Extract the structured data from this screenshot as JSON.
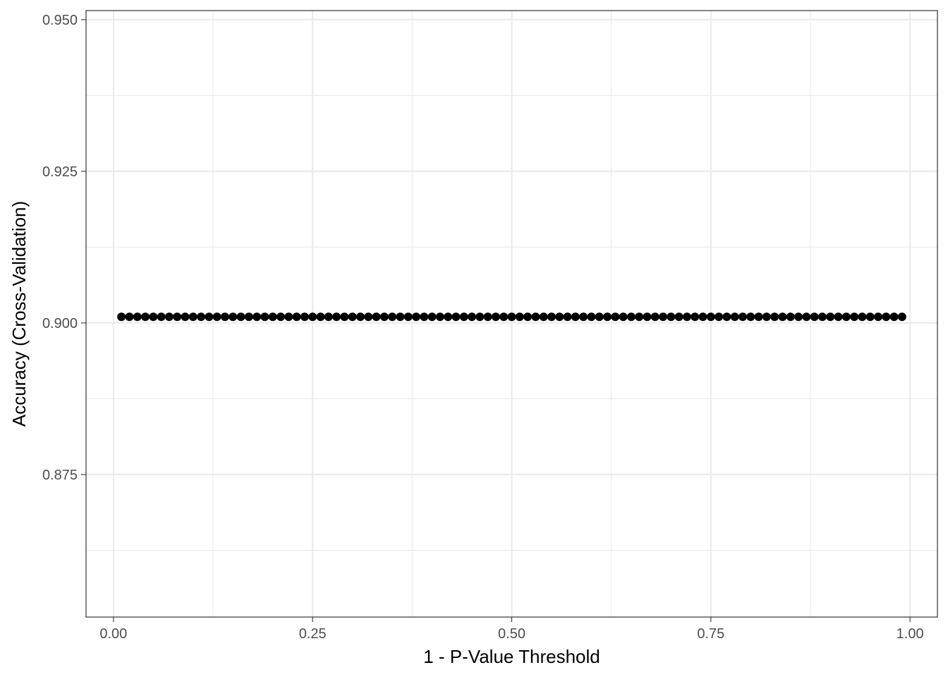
{
  "chart_data": {
    "type": "scatter",
    "xlabel": "1 - P-Value Threshold",
    "ylabel": "Accuracy (Cross-Validation)",
    "xlim": [
      -0.0344,
      1.0344
    ],
    "ylim": [
      0.8515,
      0.9515
    ],
    "x_ticks": [
      0.0,
      0.25,
      0.5,
      0.75,
      1.0
    ],
    "x_tick_labels": [
      "0.00",
      "0.25",
      "0.50",
      "0.75",
      "1.00"
    ],
    "y_ticks": [
      0.875,
      0.9,
      0.925,
      0.95
    ],
    "y_tick_labels": [
      "0.875",
      "0.900",
      "0.925",
      "0.950"
    ],
    "grid": true,
    "legend": "none",
    "point_color": "#000000",
    "series": [
      {
        "x": [
          0.01,
          0.02,
          0.03,
          0.04,
          0.05,
          0.06,
          0.07,
          0.08,
          0.09,
          0.1,
          0.11,
          0.12,
          0.13,
          0.14,
          0.15,
          0.16,
          0.17,
          0.18,
          0.19,
          0.2,
          0.21,
          0.22,
          0.23,
          0.24,
          0.25,
          0.26,
          0.27,
          0.28,
          0.29,
          0.3,
          0.31,
          0.32,
          0.33,
          0.34,
          0.35,
          0.36,
          0.37,
          0.38,
          0.39,
          0.4,
          0.41,
          0.42,
          0.43,
          0.44,
          0.45,
          0.46,
          0.47,
          0.48,
          0.49,
          0.5,
          0.51,
          0.52,
          0.53,
          0.54,
          0.55,
          0.56,
          0.57,
          0.58,
          0.59,
          0.6,
          0.61,
          0.62,
          0.63,
          0.64,
          0.65,
          0.66,
          0.67,
          0.68,
          0.69,
          0.7,
          0.71,
          0.72,
          0.73,
          0.74,
          0.75,
          0.76,
          0.77,
          0.78,
          0.79,
          0.8,
          0.81,
          0.82,
          0.83,
          0.84,
          0.85,
          0.86,
          0.87,
          0.88,
          0.89,
          0.9,
          0.91,
          0.92,
          0.93,
          0.94,
          0.95,
          0.96,
          0.97,
          0.98,
          0.99
        ],
        "y_constant": 0.901
      }
    ]
  }
}
